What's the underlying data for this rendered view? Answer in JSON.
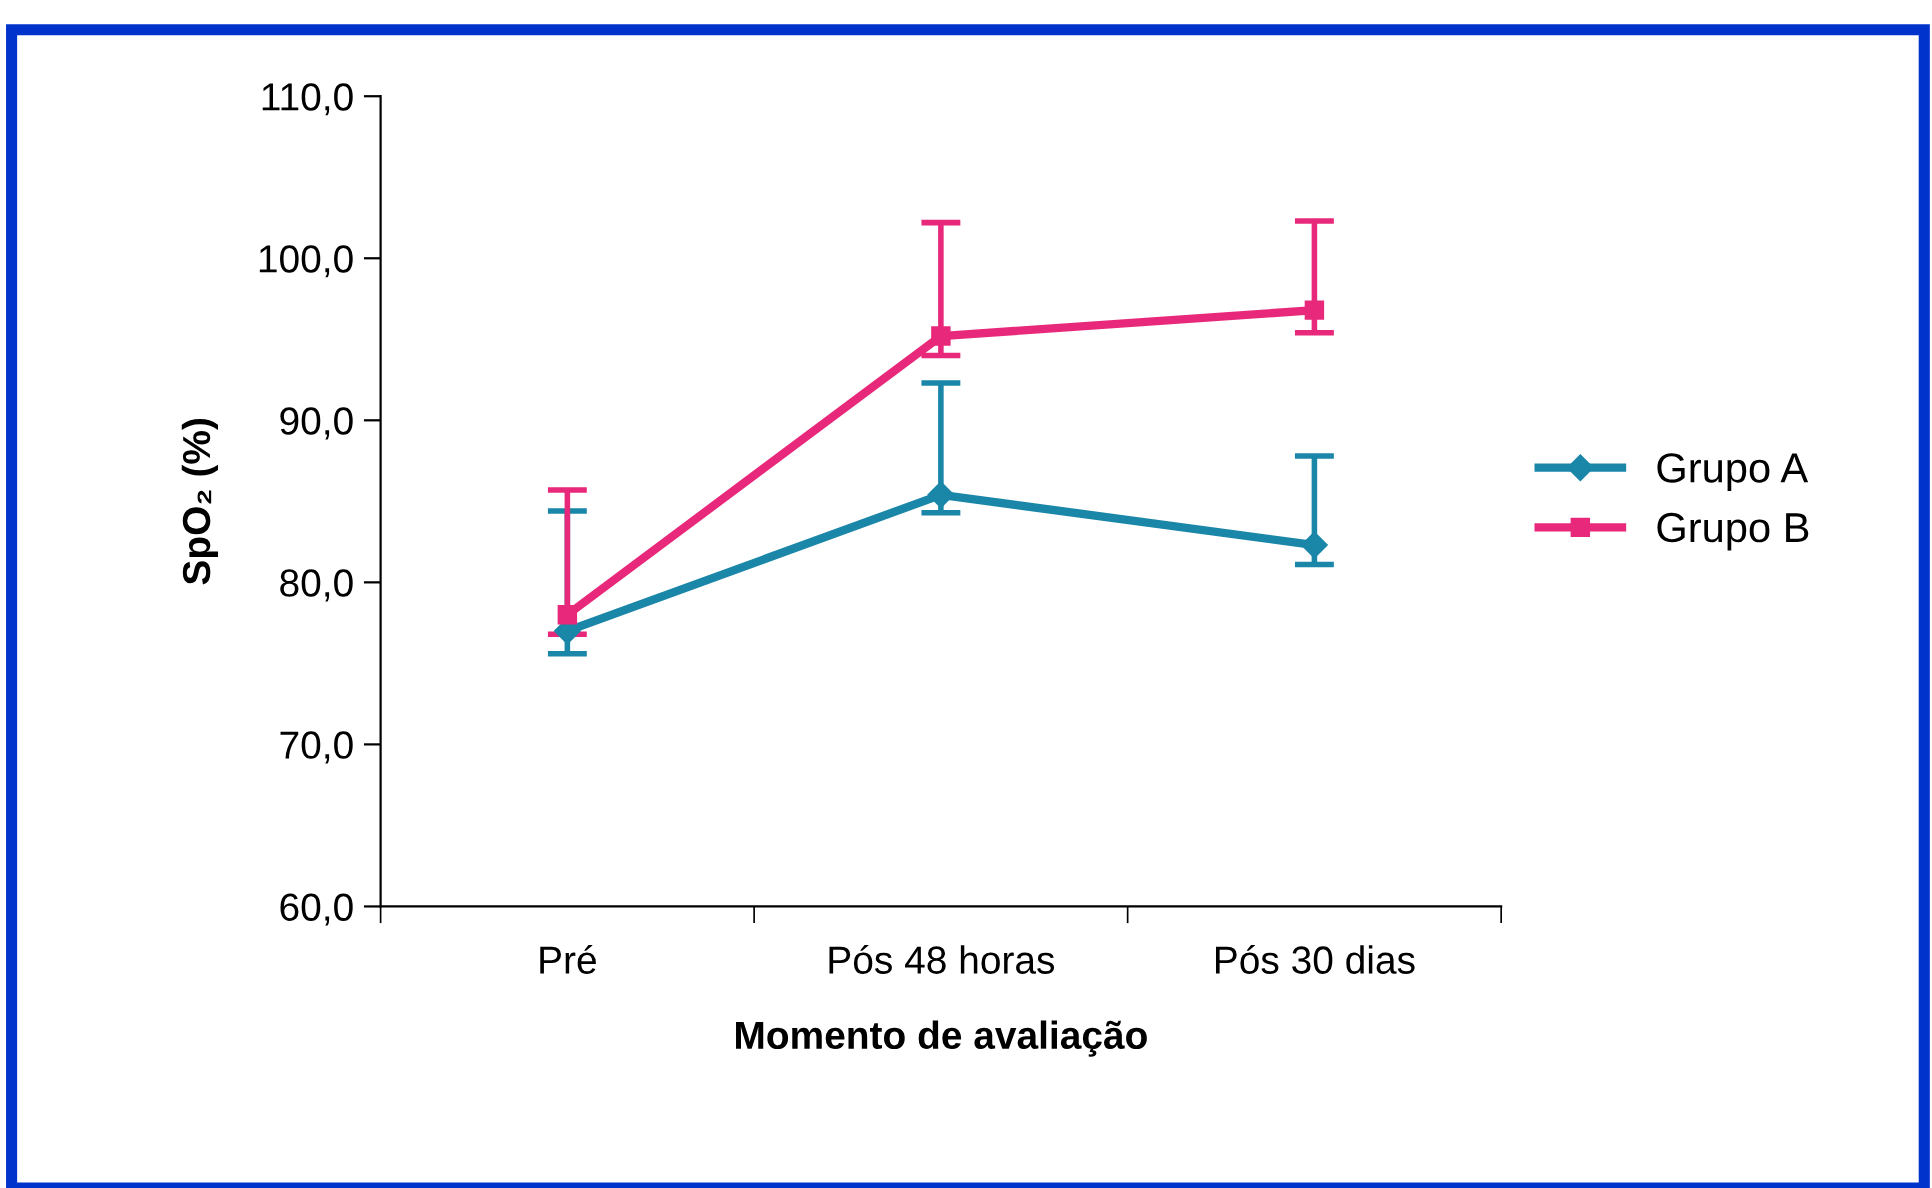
{
  "chart_data": {
    "type": "line",
    "xlabel": "Momento de avaliação",
    "ylabel": "SpO₂ (%)",
    "categories": [
      "Pré",
      "Pós 48 horas",
      "Pós 30 dias"
    ],
    "series": [
      {
        "name": "Grupo A",
        "color": "#1a86a8",
        "marker": "diamond",
        "values": [
          77.0,
          85.4,
          82.3
        ],
        "errors": [
          [
            75.6,
            84.4
          ],
          [
            84.3,
            92.3
          ],
          [
            81.1,
            87.8
          ]
        ]
      },
      {
        "name": "Grupo B",
        "color": "#e8287a",
        "marker": "square",
        "values": [
          78.0,
          95.2,
          96.8
        ],
        "errors": [
          [
            76.8,
            85.7
          ],
          [
            94.0,
            102.2
          ],
          [
            95.4,
            102.3
          ]
        ]
      }
    ],
    "ylim": [
      60,
      110
    ],
    "yticks": [
      {
        "value": 60,
        "label": "60,0"
      },
      {
        "value": 70,
        "label": "70,0"
      },
      {
        "value": 80,
        "label": "80,0"
      },
      {
        "value": 90,
        "label": "90,0"
      },
      {
        "value": 100,
        "label": "100,0"
      },
      {
        "value": 110,
        "label": "110,0"
      }
    ],
    "grid": false,
    "legend": "right",
    "line_style": "solid"
  }
}
